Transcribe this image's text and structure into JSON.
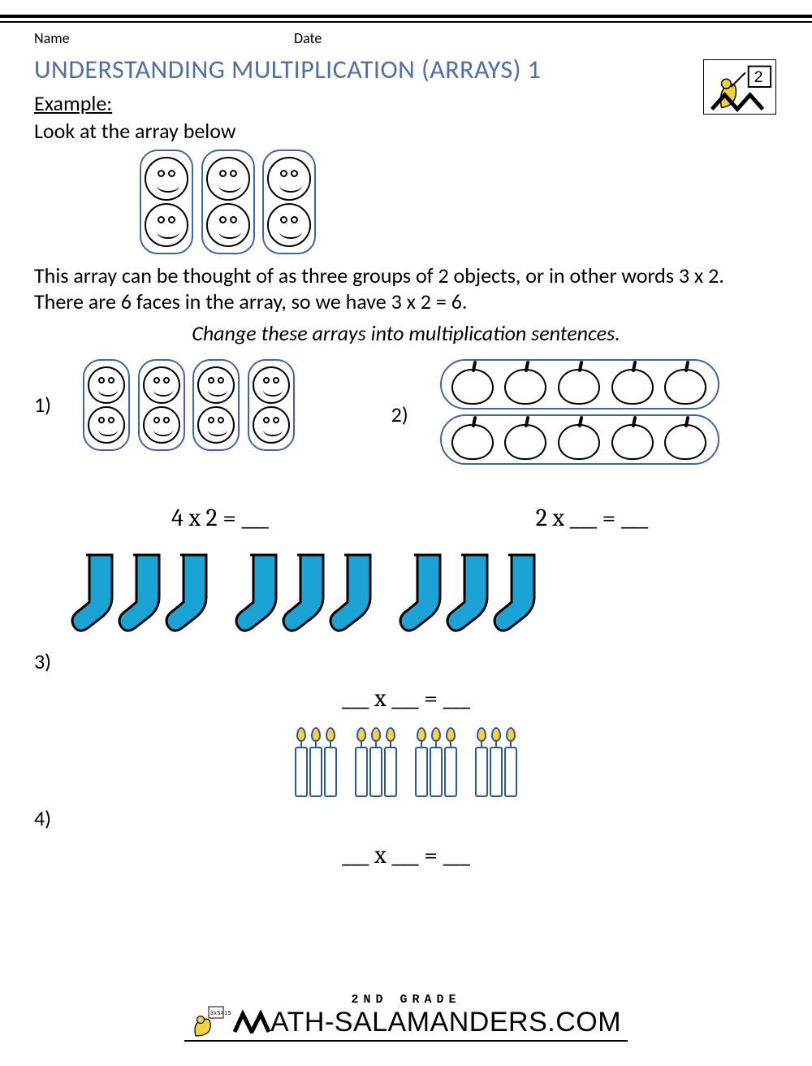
{
  "header": {
    "name_label": "Name",
    "date_label": "Date",
    "logo_grade": "2"
  },
  "title": "UNDERSTANDING MULTIPLICATION (ARRAYS) 1",
  "example": {
    "label": "Example:",
    "intro": "Look at the array below",
    "array": {
      "groups": 3,
      "per_group": 2,
      "shape": "smiley-face"
    },
    "explanation": "This array can be thought of as three groups of 2 objects, or in other words 3 x 2. There are 6 faces in the array, so we have 3 x 2 = 6."
  },
  "instruction": "Change these arrays into multiplication sentences.",
  "problems": [
    {
      "number": "1)",
      "array": {
        "orientation": "vertical-groups",
        "groups": 4,
        "per_group": 2,
        "shape": "smiley-face"
      },
      "equation": "4 x 2 = ___"
    },
    {
      "number": "2)",
      "array": {
        "orientation": "horizontal-groups",
        "groups": 2,
        "per_group": 5,
        "shape": "apple"
      },
      "equation": "2 x ___  = ___"
    },
    {
      "number": "3)",
      "array": {
        "orientation": "row-groups",
        "groups": 3,
        "per_group": 3,
        "shape": "sock",
        "color": "#1aa3d4"
      },
      "equation": "___ x ___  = ___"
    },
    {
      "number": "4)",
      "array": {
        "orientation": "row-groups",
        "groups": 4,
        "per_group": 3,
        "shape": "candle",
        "accent": "#2f5a9a",
        "flame": "#ffd040"
      },
      "equation": "___ x ___  = ___"
    }
  ],
  "footer": {
    "grade_line": "2ND GRADE",
    "site_name": "ATH-SALAMANDERS.COM"
  },
  "colors": {
    "title": "#4f6fa8",
    "pill_border": "#41669f",
    "sock": "#1aa3d4",
    "candle_outline": "#2f5a9a",
    "flame": "#ffd040"
  }
}
